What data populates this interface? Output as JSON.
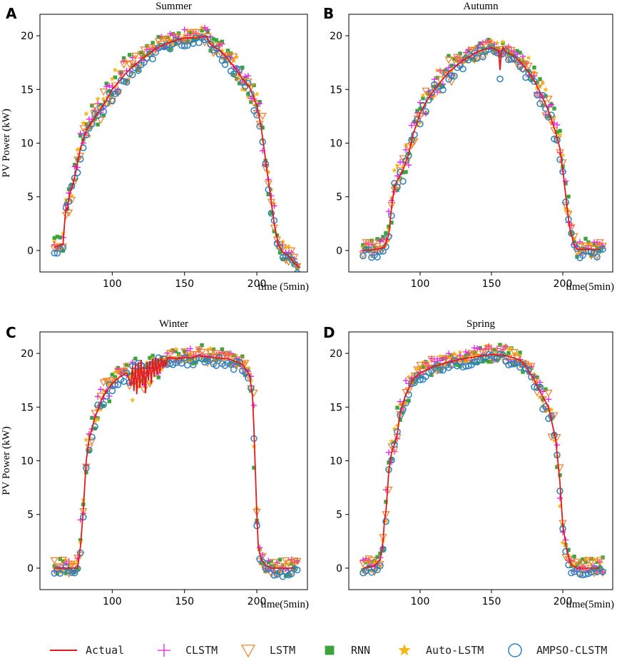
{
  "figure": {
    "y_axis_label": "PV Power (kW)"
  },
  "chart_data": [
    {
      "type": "scatter",
      "panel_label": "A",
      "title": "Summer",
      "xlabel": "time (5min)",
      "ylabel": "PV Power (kW)",
      "xlim": [
        50,
        235
      ],
      "ylim": [
        -2,
        22
      ],
      "xticks": [
        100,
        150,
        200
      ],
      "yticks": [
        0,
        5,
        10,
        15,
        20
      ],
      "actual": {
        "x": [
          60,
          66,
          67,
          68,
          69,
          70,
          71,
          73,
          75,
          78,
          82,
          86,
          90,
          95,
          100,
          110,
          120,
          130,
          140,
          150,
          158,
          165,
          168,
          175,
          180,
          185,
          190,
          195,
          200,
          203,
          206,
          209,
          212,
          215,
          218,
          222,
          226,
          230
        ],
        "y": [
          0.3,
          0.6,
          2.5,
          4.0,
          3.8,
          4.8,
          5.5,
          6.2,
          7.5,
          9.5,
          11.2,
          12.0,
          12.8,
          13.8,
          15.0,
          16.6,
          17.8,
          18.8,
          19.4,
          19.8,
          19.8,
          20.0,
          19.2,
          18.6,
          17.8,
          17.0,
          16.0,
          15.2,
          13.5,
          11.5,
          8.5,
          5.5,
          2.5,
          0.5,
          -0.2,
          -0.5,
          -1.2,
          -1.6
        ]
      }
    },
    {
      "type": "scatter",
      "panel_label": "B",
      "title": "Autumn",
      "xlabel": "time(5min)",
      "ylabel": "",
      "xlim": [
        50,
        235
      ],
      "ylim": [
        -2,
        22
      ],
      "xticks": [
        100,
        150,
        200
      ],
      "yticks": [
        0,
        5,
        10,
        15,
        20
      ],
      "actual": {
        "x": [
          60,
          70,
          75,
          78,
          80,
          82,
          84,
          88,
          92,
          95,
          100,
          105,
          110,
          120,
          130,
          140,
          150,
          155,
          156,
          157,
          158,
          160,
          165,
          170,
          175,
          180,
          185,
          190,
          195,
          198,
          200,
          203,
          205,
          208,
          210,
          215,
          220,
          226
        ],
        "y": [
          0,
          0.1,
          0.3,
          1.5,
          4.0,
          6.0,
          6.5,
          7.5,
          9.0,
          10.8,
          12.8,
          14.0,
          15.0,
          16.6,
          17.7,
          18.5,
          18.9,
          18.6,
          16.8,
          18.5,
          18.9,
          18.5,
          18.2,
          17.6,
          16.8,
          15.8,
          14.5,
          13.0,
          11.0,
          9.5,
          7.5,
          4.0,
          2.0,
          0.5,
          0.1,
          0.1,
          0.1,
          0.1
        ]
      }
    },
    {
      "type": "scatter",
      "panel_label": "C",
      "title": "Winter",
      "xlabel": "time(5min)",
      "ylabel": "PV Power (kW)",
      "xlim": [
        50,
        235
      ],
      "ylim": [
        -2,
        22
      ],
      "xticks": [
        100,
        150,
        200
      ],
      "yticks": [
        0,
        5,
        10,
        15,
        20
      ],
      "actual": {
        "x": [
          60,
          70,
          76,
          78,
          80,
          82,
          84,
          88,
          92,
          96,
          100,
          105,
          110,
          113,
          114,
          115,
          116,
          117,
          118,
          119,
          120,
          121,
          122,
          123,
          124,
          125,
          126,
          127,
          128,
          129,
          130,
          131,
          132,
          133,
          134,
          135,
          136,
          137,
          138,
          140,
          145,
          150,
          155,
          160,
          165,
          170,
          180,
          190,
          195,
          197,
          198,
          199,
          200,
          201,
          203,
          206,
          210,
          220,
          226
        ],
        "y": [
          0,
          0,
          0,
          2.0,
          5.5,
          10.0,
          12.0,
          14.0,
          15.5,
          16.5,
          17.2,
          17.8,
          18.2,
          17.0,
          18.8,
          16.5,
          19.0,
          16.2,
          19.2,
          16.8,
          19.4,
          17.0,
          18.8,
          16.3,
          19.2,
          17.5,
          19.3,
          17.2,
          19.5,
          17.8,
          19.6,
          18.0,
          19.5,
          18.2,
          19.6,
          18.6,
          19.4,
          18.8,
          19.6,
          19.6,
          19.5,
          19.6,
          19.6,
          19.8,
          19.7,
          19.6,
          19.5,
          19.0,
          18.0,
          16.0,
          13.0,
          9.0,
          5.0,
          2.0,
          0.8,
          0.3,
          0,
          0,
          0
        ]
      }
    },
    {
      "type": "scatter",
      "panel_label": "D",
      "title": "Spring",
      "xlabel": "time(5min)",
      "ylabel": "",
      "xlim": [
        50,
        235
      ],
      "ylim": [
        -2,
        22
      ],
      "xticks": [
        100,
        150,
        200
      ],
      "yticks": [
        0,
        5,
        10,
        15,
        20
      ],
      "actual": {
        "x": [
          60,
          68,
          72,
          74,
          75,
          76,
          77,
          78,
          80,
          82,
          84,
          86,
          90,
          95,
          100,
          110,
          120,
          130,
          140,
          150,
          160,
          170,
          175,
          180,
          185,
          190,
          195,
          198,
          200,
          203,
          206,
          210,
          215,
          220,
          226
        ],
        "y": [
          0,
          0.2,
          0.8,
          2.5,
          4.5,
          5.2,
          7.0,
          9.0,
          10.8,
          11.5,
          12.5,
          14.5,
          16.2,
          17.6,
          18.2,
          18.8,
          19.2,
          19.5,
          19.7,
          19.9,
          19.8,
          19.4,
          18.6,
          17.5,
          16.2,
          15.0,
          12.0,
          8.0,
          4.0,
          1.5,
          0.3,
          0,
          0,
          0,
          0
        ]
      }
    }
  ],
  "legend": [
    {
      "key": "actual",
      "label": "Actual",
      "color": "#e31a1c",
      "marker": "line"
    },
    {
      "key": "clstm",
      "label": "CLSTM",
      "color": "#e61ee6",
      "marker": "plus"
    },
    {
      "key": "lstm",
      "label": "LSTM",
      "color": "#f07d2a",
      "marker": "triangle-down"
    },
    {
      "key": "rnn",
      "label": "RNN",
      "color": "#3ba53b",
      "marker": "square"
    },
    {
      "key": "auto_lstm",
      "label": "Auto-LSTM",
      "color": "#f5b718",
      "marker": "star"
    },
    {
      "key": "ampso_clstm",
      "label": "AMPSO-CLSTM",
      "color": "#2d7fc0",
      "marker": "circle"
    }
  ]
}
